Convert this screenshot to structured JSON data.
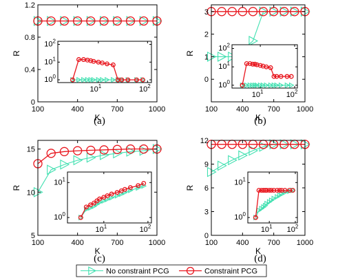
{
  "colors": {
    "no_constraint": "#40e0b0",
    "constraint": "#e8141c",
    "axis": "#000000"
  },
  "legend": [
    {
      "label": "No constraint PCG",
      "marker": "triangle-right",
      "color": "#40e0b0"
    },
    {
      "label": "Constraint PCG",
      "marker": "circle",
      "color": "#e8141c"
    }
  ],
  "chart_data": [
    {
      "type": "line",
      "caption": "(a)",
      "xlabel": "K",
      "ylabel": "R",
      "xlim": [
        100,
        1000
      ],
      "ylim": [
        0,
        1.2
      ],
      "xticks": [
        100,
        400,
        700,
        1000
      ],
      "yticks": [
        {
          "v": 0,
          "l": "0"
        },
        {
          "v": 0.4,
          "l": "0.4"
        },
        {
          "v": 0.8,
          "l": "0.8"
        },
        {
          "v": 1.2,
          "l": "1.2"
        }
      ],
      "x": [
        100,
        200,
        300,
        400,
        500,
        600,
        700,
        800,
        900,
        1000
      ],
      "series": [
        {
          "name": "No constraint PCG",
          "key": "no_constraint",
          "values": [
            1,
            1,
            1,
            1,
            1,
            1,
            1,
            1,
            1,
            1
          ]
        },
        {
          "name": "Constraint PCG",
          "key": "constraint",
          "values": [
            1,
            1,
            1,
            1,
            1,
            1,
            1,
            1,
            1,
            1
          ]
        }
      ],
      "inset": {
        "xscale": "log",
        "yscale": "log",
        "xlim": [
          1.5,
          120
        ],
        "ylim": [
          0.7,
          150
        ],
        "xticks": [
          {
            "v": 1,
            "e": "0"
          },
          {
            "v": 10,
            "e": "1"
          },
          {
            "v": 100,
            "e": "2"
          }
        ],
        "yticks": [
          {
            "v": 1,
            "e": "0"
          },
          {
            "v": 10,
            "e": "1"
          },
          {
            "v": 100,
            "e": "2"
          }
        ],
        "x": [
          3,
          4,
          5,
          6,
          7,
          8,
          10,
          12,
          15,
          20,
          25,
          30,
          40,
          60,
          80
        ],
        "series": [
          {
            "key": "no_constraint",
            "values": [
              1,
              1,
              1,
              1,
              1,
              1,
              1,
              1,
              1,
              1,
              1,
              1,
              1,
              1,
              1
            ]
          },
          {
            "key": "constraint",
            "values": [
              1,
              14,
              14,
              13,
              12,
              11,
              10,
              9,
              8,
              7,
              1,
              1,
              1,
              1,
              1
            ]
          }
        ]
      }
    },
    {
      "type": "line",
      "caption": "(b)",
      "xlabel": "K",
      "ylabel": "R",
      "xlim": [
        100,
        1000
      ],
      "ylim": [
        -1,
        3.3
      ],
      "xticks": [
        100,
        400,
        700,
        1000
      ],
      "yticks": [
        {
          "v": 0,
          "l": "0"
        },
        {
          "v": 1,
          "l": "1"
        },
        {
          "v": 2,
          "l": "2"
        },
        {
          "v": 3,
          "l": "3"
        }
      ],
      "x": [
        100,
        200,
        300,
        400,
        500,
        600,
        700,
        800,
        900,
        1000
      ],
      "series": [
        {
          "name": "No constraint PCG",
          "key": "no_constraint",
          "values": [
            1,
            1,
            1,
            1.3,
            1.7,
            3,
            3,
            3,
            3,
            3
          ]
        },
        {
          "name": "Constraint PCG",
          "key": "constraint",
          "values": [
            3,
            3,
            3,
            3,
            3,
            3,
            3,
            3,
            3,
            3
          ]
        }
      ],
      "inset": {
        "xscale": "log",
        "yscale": "log",
        "xlim": [
          1.5,
          120
        ],
        "ylim": [
          0.7,
          160
        ],
        "xticks": [
          {
            "v": 1,
            "e": "0"
          },
          {
            "v": 10,
            "e": "1"
          },
          {
            "v": 100,
            "e": "2"
          }
        ],
        "yticks": [
          {
            "v": 1,
            "e": "0"
          },
          {
            "v": 10,
            "e": "1"
          },
          {
            "v": 100,
            "e": "2"
          }
        ],
        "x": [
          3,
          4,
          5,
          6,
          7,
          8,
          10,
          12,
          15,
          20,
          25,
          30,
          40,
          60,
          80
        ],
        "series": [
          {
            "key": "no_constraint",
            "values": [
              1,
              1,
              1,
              1,
              1,
              1,
              1,
              1,
              1,
              1,
              1,
              1,
              1,
              1,
              1
            ]
          },
          {
            "key": "constraint",
            "values": [
              1,
              15,
              15,
              14,
              14,
              13,
              12,
              11,
              10,
              9,
              3,
              3,
              3,
              3,
              3
            ]
          }
        ]
      }
    },
    {
      "type": "line",
      "caption": "(c)",
      "xlabel": "K",
      "ylabel": "R",
      "xlim": [
        100,
        1000
      ],
      "ylim": [
        5,
        16
      ],
      "xticks": [
        100,
        400,
        700,
        1000
      ],
      "yticks": [
        {
          "v": 5,
          "l": "5"
        },
        {
          "v": 10,
          "l": "10"
        },
        {
          "v": 15,
          "l": "15"
        }
      ],
      "x": [
        100,
        200,
        300,
        400,
        500,
        600,
        700,
        800,
        900,
        1000
      ],
      "series": [
        {
          "name": "No constraint PCG",
          "key": "no_constraint",
          "values": [
            10,
            12.6,
            13.2,
            13.7,
            14,
            14.3,
            14.5,
            14.7,
            14.8,
            15
          ]
        },
        {
          "name": "Constraint PCG",
          "key": "constraint",
          "values": [
            13.3,
            14.5,
            14.7,
            14.8,
            14.85,
            14.9,
            14.95,
            15,
            15,
            15
          ]
        }
      ],
      "inset": {
        "xscale": "log",
        "yscale": "log",
        "xlim": [
          1.5,
          120
        ],
        "ylim": [
          0.7,
          20
        ],
        "xticks": [
          {
            "v": 1,
            "e": "0"
          },
          {
            "v": 10,
            "e": "1"
          },
          {
            "v": 100,
            "e": "2"
          }
        ],
        "yticks": [
          {
            "v": 1,
            "e": "0"
          },
          {
            "v": 10,
            "e": "1"
          }
        ],
        "x": [
          3,
          4,
          5,
          6,
          7,
          8,
          10,
          12,
          15,
          20,
          25,
          30,
          40,
          60,
          80
        ],
        "series": [
          {
            "key": "no_constraint",
            "values": [
              1,
              1.7,
              1.9,
              2.1,
              2.4,
              2.7,
              3,
              3.3,
              3.7,
              4.2,
              4.7,
              5.2,
              6,
              7,
              8
            ]
          },
          {
            "key": "constraint",
            "values": [
              1,
              2,
              2.3,
              2.6,
              3,
              3.4,
              3.8,
              4.2,
              4.7,
              5.2,
              5.8,
              6.4,
              7.2,
              8.2,
              9.5
            ]
          }
        ]
      }
    },
    {
      "type": "line",
      "caption": "(d)",
      "xlabel": "K",
      "ylabel": "R",
      "xlim": [
        100,
        1000
      ],
      "ylim": [
        0,
        12
      ],
      "xticks": [
        100,
        400,
        700,
        1000
      ],
      "yticks": [
        {
          "v": 0,
          "l": "0"
        },
        {
          "v": 3,
          "l": "3"
        },
        {
          "v": 6,
          "l": "6"
        },
        {
          "v": 9,
          "l": "9"
        },
        {
          "v": 12,
          "l": "12"
        }
      ],
      "x": [
        100,
        200,
        300,
        400,
        500,
        600,
        700,
        800,
        900,
        1000
      ],
      "series": [
        {
          "name": "No constraint PCG",
          "key": "no_constraint",
          "values": [
            8,
            8.8,
            9.5,
            10.1,
            10.7,
            11.2,
            11.5,
            11.5,
            11.5,
            11.5
          ]
        },
        {
          "name": "Constraint PCG",
          "key": "constraint",
          "values": [
            11.5,
            11.5,
            11.5,
            11.5,
            11.5,
            11.5,
            11.5,
            11.5,
            11.5,
            11.5
          ]
        }
      ],
      "inset": {
        "xscale": "log",
        "yscale": "log",
        "xlim": [
          1.5,
          120
        ],
        "ylim": [
          0.7,
          20
        ],
        "xticks": [
          {
            "v": 1,
            "e": "0"
          },
          {
            "v": 10,
            "e": "1"
          },
          {
            "v": 100,
            "e": "2"
          }
        ],
        "yticks": [
          {
            "v": 1,
            "e": "0"
          },
          {
            "v": 10,
            "e": "1"
          }
        ],
        "x": [
          3,
          4,
          5,
          6,
          7,
          8,
          10,
          12,
          15,
          20,
          25,
          30,
          40,
          60,
          80
        ],
        "series": [
          {
            "key": "no_constraint",
            "values": [
              1,
              1.6,
              1.8,
              2,
              2.2,
              2.5,
              2.8,
              3.1,
              3.5,
              3.9,
              4.3,
              4.7,
              5.2,
              5.7,
              6
            ]
          },
          {
            "key": "constraint",
            "values": [
              1,
              6,
              6,
              6,
              6,
              6,
              6,
              6,
              6,
              6,
              6,
              6,
              6,
              6,
              6
            ]
          }
        ]
      }
    }
  ]
}
